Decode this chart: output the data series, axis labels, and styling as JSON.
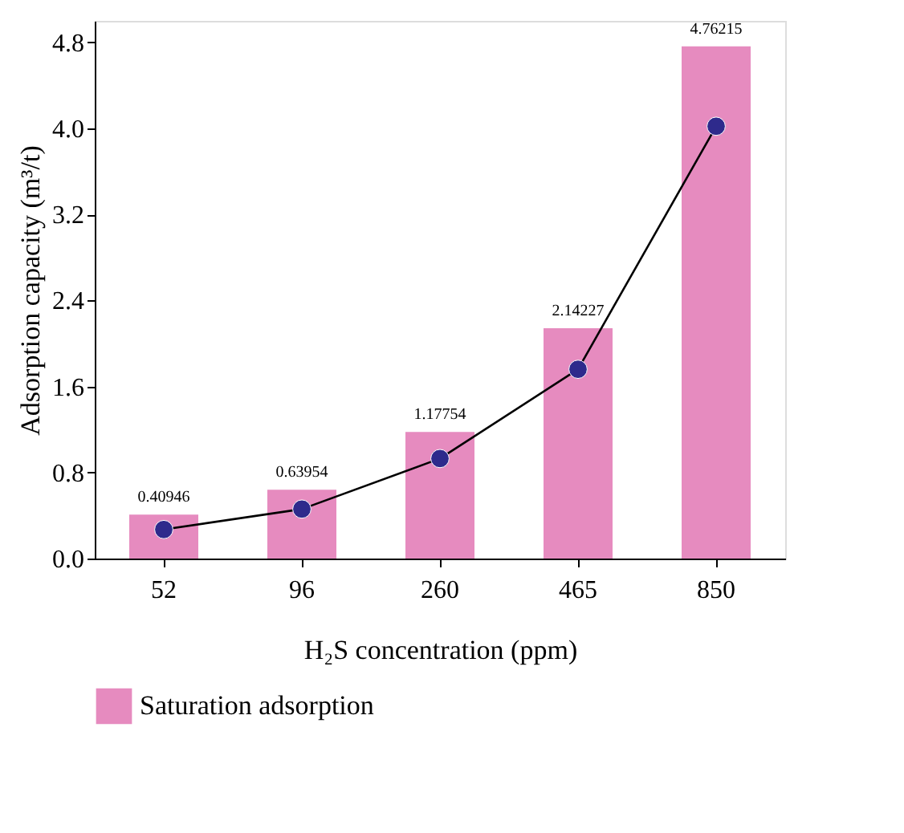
{
  "chart_data": {
    "type": "bar",
    "xlabel": "H₂S concentration (ppm)",
    "ylabel": "Adsorption capacity (m³/t)",
    "categories": [
      "52",
      "96",
      "260",
      "465",
      "850"
    ],
    "series": [
      {
        "name": "Saturation adsorption",
        "color": "#e68bbf",
        "values": [
          0.40946,
          0.63954,
          1.17754,
          2.14227,
          4.76215
        ],
        "value_labels": [
          "0.40946",
          "0.63954",
          "1.17754",
          "2.14227",
          "4.76215"
        ]
      },
      {
        "type": "line",
        "color": "#2e2a8c",
        "values": [
          0.27,
          0.46,
          0.93,
          1.76,
          4.02
        ],
        "marker": "circle"
      }
    ],
    "ylim": [
      0,
      5
    ],
    "yticks": [
      {
        "value": 0,
        "label": "0.0"
      },
      {
        "value": 0.8,
        "label": "0.8"
      },
      {
        "value": 1.6,
        "label": "1.6"
      },
      {
        "value": 2.4,
        "label": "2.4"
      },
      {
        "value": 3.2,
        "label": "3.2"
      },
      {
        "value": 4.0,
        "label": "4.0"
      },
      {
        "value": 4.8,
        "label": "4.8"
      }
    ],
    "grid": false,
    "legend": "bottom left"
  }
}
